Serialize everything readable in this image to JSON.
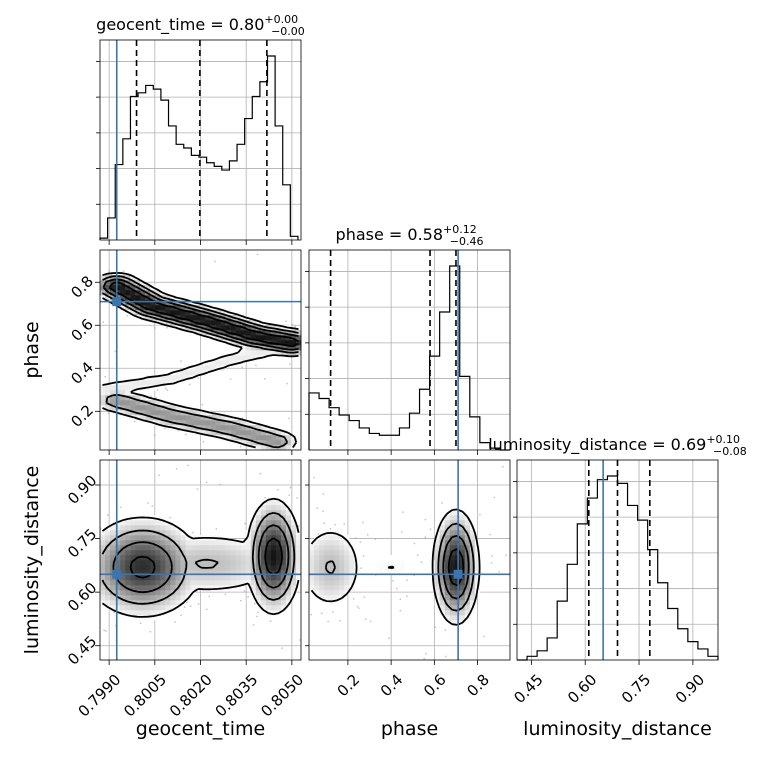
{
  "chart_data": {
    "type": "corner",
    "parameters": [
      {
        "name": "geocent_time",
        "axis_label": "geocent_time",
        "range": [
          0.7987,
          0.8053
        ],
        "ticks": [
          "0.7990",
          "0.8005",
          "0.8020",
          "0.8035",
          "0.8050"
        ],
        "tick_values": [
          0.799,
          0.8005,
          0.802,
          0.8035,
          0.805
        ],
        "truth": 0.79925,
        "quantiles": [
          0.7999,
          0.80198,
          0.80418
        ],
        "title": {
          "main": "geocent_time = 0.80",
          "sup": "+0.00",
          "sub": "−0.00"
        },
        "hist_edges": [
          0.7987,
          0.79895,
          0.7992,
          0.79945,
          0.7997,
          0.79995,
          0.8002,
          0.80045,
          0.8007,
          0.80095,
          0.8012,
          0.80145,
          0.8017,
          0.80195,
          0.8022,
          0.80245,
          0.8027,
          0.80295,
          0.8032,
          0.80345,
          0.8037,
          0.80395,
          0.8042,
          0.80445,
          0.8047,
          0.80495,
          0.8052
        ],
        "hist_values": [
          0.01,
          0.12,
          0.41,
          0.55,
          0.78,
          0.8,
          0.84,
          0.82,
          0.76,
          0.62,
          0.52,
          0.5,
          0.46,
          0.45,
          0.42,
          0.4,
          0.38,
          0.43,
          0.52,
          0.66,
          0.78,
          0.86,
          1.0,
          0.62,
          0.3,
          0.02
        ]
      },
      {
        "name": "phase",
        "axis_label": "phase",
        "range": [
          0.02,
          0.95
        ],
        "ticks": [
          "0.2",
          "0.4",
          "0.6",
          "0.8"
        ],
        "tick_values": [
          0.2,
          0.4,
          0.6,
          0.8
        ],
        "truth": 0.71,
        "quantiles": [
          0.12,
          0.58,
          0.7
        ],
        "title": {
          "main": "phase = 0.58",
          "sup": "+0.12",
          "sub": "−0.46"
        },
        "hist_edges": [
          0.02,
          0.0665,
          0.113,
          0.1595,
          0.206,
          0.2525,
          0.299,
          0.3455,
          0.392,
          0.4385,
          0.485,
          0.5315,
          0.578,
          0.6245,
          0.671,
          0.7175,
          0.764,
          0.8105,
          0.857,
          0.9035,
          0.95
        ],
        "hist_values": [
          0.31,
          0.28,
          0.23,
          0.19,
          0.16,
          0.12,
          0.09,
          0.08,
          0.08,
          0.12,
          0.2,
          0.33,
          0.51,
          0.75,
          1.0,
          0.4,
          0.18,
          0.04,
          0.01,
          0.0
        ]
      },
      {
        "name": "luminosity_distance",
        "axis_label": "luminosity_distance",
        "range": [
          0.41,
          0.97
        ],
        "ticks": [
          "0.45",
          "0.60",
          "0.75",
          "0.90"
        ],
        "tick_values": [
          0.45,
          0.6,
          0.75,
          0.9
        ],
        "truth": 0.65,
        "quantiles": [
          0.61,
          0.69,
          0.78
        ],
        "title": {
          "main": "luminosity_distance = 0.69",
          "sup": "+0.10",
          "sub": "−0.08"
        },
        "hist_edges": [
          0.41,
          0.438,
          0.466,
          0.494,
          0.522,
          0.55,
          0.578,
          0.606,
          0.634,
          0.662,
          0.69,
          0.718,
          0.746,
          0.774,
          0.802,
          0.83,
          0.858,
          0.886,
          0.914,
          0.942,
          0.97
        ],
        "hist_values": [
          0.0,
          0.02,
          0.05,
          0.12,
          0.32,
          0.52,
          0.74,
          0.88,
          0.98,
          1.0,
          0.96,
          0.84,
          0.76,
          0.6,
          0.42,
          0.28,
          0.17,
          0.1,
          0.06,
          0.02
        ]
      }
    ],
    "truth_color": "#3b75af",
    "scatter_color": "#9a9a9a",
    "grid": true
  }
}
